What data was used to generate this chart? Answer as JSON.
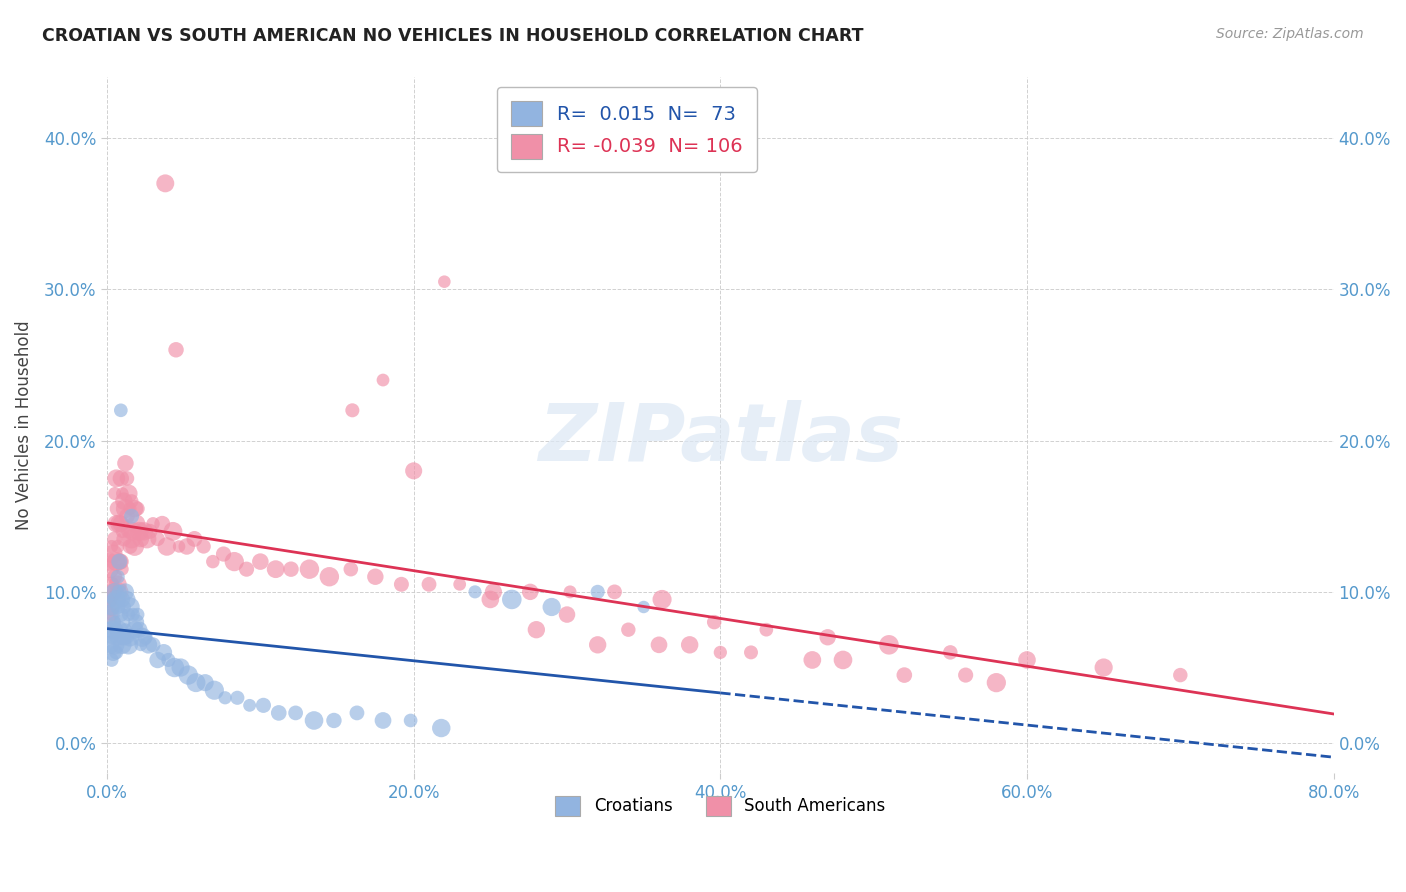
{
  "title": "CROATIAN VS SOUTH AMERICAN NO VEHICLES IN HOUSEHOLD CORRELATION CHART",
  "source": "Source: ZipAtlas.com",
  "ylabel": "No Vehicles in Household",
  "xlabel": "",
  "xlim": [
    0.0,
    0.8
  ],
  "ylim": [
    -0.02,
    0.44
  ],
  "yticks": [
    0.0,
    0.1,
    0.2,
    0.3,
    0.4
  ],
  "ytick_labels": [
    "0.0%",
    "10.0%",
    "20.0%",
    "30.0%",
    "40.0%"
  ],
  "xticks": [
    0.0,
    0.2,
    0.4,
    0.6,
    0.8
  ],
  "xtick_labels": [
    "0.0%",
    "20.0%",
    "40.0%",
    "60.0%",
    "80.0%"
  ],
  "croatian_R": 0.015,
  "croatian_N": 73,
  "south_american_R": -0.039,
  "south_american_N": 106,
  "croatian_color": "#92b4e0",
  "south_american_color": "#f090a8",
  "croatian_line_color": "#2255aa",
  "south_american_line_color": "#dd3355",
  "background_color": "#ffffff",
  "croatian_x": [
    0.001,
    0.002,
    0.002,
    0.003,
    0.003,
    0.003,
    0.004,
    0.004,
    0.004,
    0.005,
    0.005,
    0.005,
    0.006,
    0.006,
    0.006,
    0.007,
    0.007,
    0.007,
    0.008,
    0.008,
    0.008,
    0.009,
    0.009,
    0.01,
    0.01,
    0.01,
    0.011,
    0.011,
    0.012,
    0.012,
    0.013,
    0.013,
    0.014,
    0.014,
    0.015,
    0.015,
    0.016,
    0.017,
    0.018,
    0.019,
    0.02,
    0.021,
    0.022,
    0.023,
    0.025,
    0.027,
    0.03,
    0.033,
    0.037,
    0.04,
    0.044,
    0.048,
    0.053,
    0.058,
    0.064,
    0.07,
    0.077,
    0.085,
    0.093,
    0.102,
    0.112,
    0.123,
    0.135,
    0.148,
    0.163,
    0.18,
    0.198,
    0.218,
    0.24,
    0.264,
    0.29,
    0.32,
    0.35
  ],
  "croatian_y": [
    0.075,
    0.085,
    0.065,
    0.09,
    0.07,
    0.055,
    0.095,
    0.075,
    0.06,
    0.1,
    0.08,
    0.065,
    0.095,
    0.075,
    0.06,
    0.11,
    0.09,
    0.07,
    0.12,
    0.1,
    0.075,
    0.22,
    0.085,
    0.095,
    0.08,
    0.065,
    0.09,
    0.07,
    0.1,
    0.075,
    0.095,
    0.07,
    0.085,
    0.065,
    0.09,
    0.07,
    0.15,
    0.085,
    0.075,
    0.08,
    0.085,
    0.075,
    0.065,
    0.07,
    0.07,
    0.065,
    0.065,
    0.055,
    0.06,
    0.055,
    0.05,
    0.05,
    0.045,
    0.04,
    0.04,
    0.035,
    0.03,
    0.03,
    0.025,
    0.025,
    0.02,
    0.02,
    0.015,
    0.015,
    0.02,
    0.015,
    0.015,
    0.01,
    0.1,
    0.095,
    0.09,
    0.1,
    0.09
  ],
  "south_american_x": [
    0.001,
    0.001,
    0.002,
    0.002,
    0.003,
    0.003,
    0.003,
    0.004,
    0.004,
    0.004,
    0.005,
    0.005,
    0.005,
    0.006,
    0.006,
    0.006,
    0.007,
    0.007,
    0.007,
    0.008,
    0.008,
    0.008,
    0.009,
    0.009,
    0.009,
    0.01,
    0.01,
    0.01,
    0.011,
    0.011,
    0.012,
    0.012,
    0.013,
    0.013,
    0.014,
    0.014,
    0.015,
    0.015,
    0.016,
    0.016,
    0.017,
    0.018,
    0.018,
    0.019,
    0.02,
    0.021,
    0.022,
    0.024,
    0.026,
    0.028,
    0.03,
    0.033,
    0.036,
    0.039,
    0.043,
    0.047,
    0.052,
    0.057,
    0.063,
    0.069,
    0.076,
    0.083,
    0.091,
    0.1,
    0.11,
    0.12,
    0.132,
    0.145,
    0.159,
    0.175,
    0.192,
    0.21,
    0.23,
    0.252,
    0.276,
    0.302,
    0.331,
    0.362,
    0.396,
    0.43,
    0.47,
    0.51,
    0.55,
    0.6,
    0.65,
    0.7,
    0.038,
    0.045,
    0.28,
    0.32,
    0.36,
    0.4,
    0.48,
    0.56,
    0.16,
    0.18,
    0.2,
    0.25,
    0.22,
    0.3,
    0.34,
    0.38,
    0.42,
    0.46,
    0.52,
    0.58
  ],
  "south_american_y": [
    0.12,
    0.095,
    0.115,
    0.09,
    0.13,
    0.105,
    0.085,
    0.125,
    0.1,
    0.08,
    0.165,
    0.135,
    0.11,
    0.175,
    0.145,
    0.12,
    0.155,
    0.13,
    0.105,
    0.145,
    0.12,
    0.1,
    0.175,
    0.145,
    0.12,
    0.165,
    0.14,
    0.115,
    0.16,
    0.135,
    0.185,
    0.155,
    0.175,
    0.15,
    0.165,
    0.14,
    0.155,
    0.13,
    0.16,
    0.135,
    0.14,
    0.155,
    0.13,
    0.145,
    0.155,
    0.14,
    0.135,
    0.14,
    0.135,
    0.14,
    0.145,
    0.135,
    0.145,
    0.13,
    0.14,
    0.13,
    0.13,
    0.135,
    0.13,
    0.12,
    0.125,
    0.12,
    0.115,
    0.12,
    0.115,
    0.115,
    0.115,
    0.11,
    0.115,
    0.11,
    0.105,
    0.105,
    0.105,
    0.1,
    0.1,
    0.1,
    0.1,
    0.095,
    0.08,
    0.075,
    0.07,
    0.065,
    0.06,
    0.055,
    0.05,
    0.045,
    0.37,
    0.26,
    0.075,
    0.065,
    0.065,
    0.06,
    0.055,
    0.045,
    0.22,
    0.24,
    0.18,
    0.095,
    0.305,
    0.085,
    0.075,
    0.065,
    0.06,
    0.055,
    0.045,
    0.04
  ]
}
